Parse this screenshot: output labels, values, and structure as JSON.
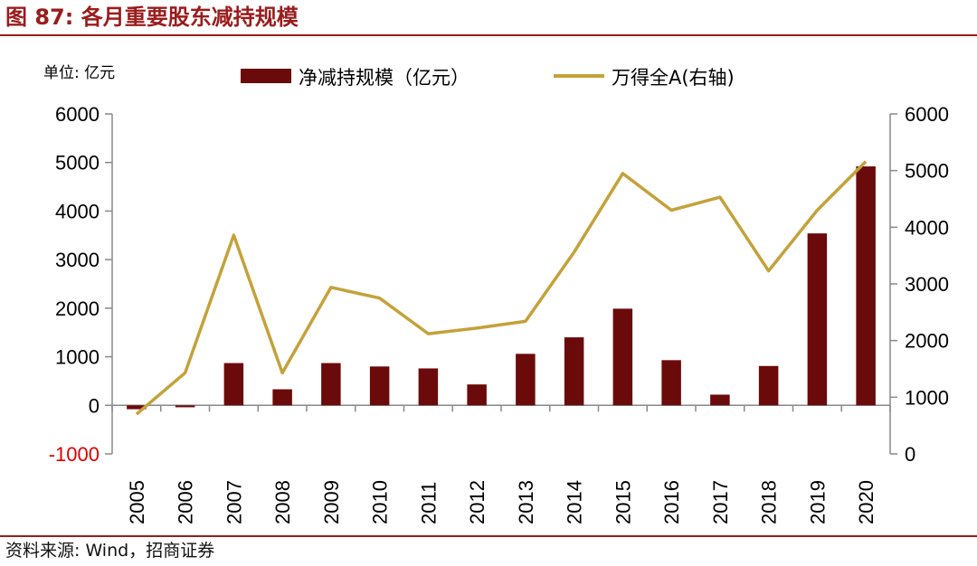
{
  "figure": {
    "title": "图 87:  各月重要股东减持规模",
    "source": "资料来源:  Wind，招商证券",
    "unit_label": "单位:  亿元"
  },
  "colors": {
    "title": "#9b1c1c",
    "bar": "#6b0a0a",
    "line": "#c4a23a",
    "negative_tick": "#e00000",
    "axis": "#888888"
  },
  "chart_data": {
    "type": "bar",
    "categories": [
      "2005",
      "2006",
      "2007",
      "2008",
      "2009",
      "2010",
      "2011",
      "2012",
      "2013",
      "2014",
      "2015",
      "2016",
      "2017",
      "2018",
      "2019",
      "2020"
    ],
    "series": [
      {
        "name": "净减持规模（亿元）",
        "type": "bar",
        "axis": "left",
        "values": [
          -80,
          -40,
          870,
          330,
          870,
          800,
          760,
          430,
          1060,
          1400,
          1990,
          930,
          220,
          810,
          3540,
          4920
        ]
      },
      {
        "name": "万得全A(右轴)",
        "type": "line",
        "axis": "right",
        "values": [
          700,
          1430,
          3860,
          1430,
          2940,
          2750,
          2120,
          2220,
          2340,
          3560,
          4950,
          4300,
          4530,
          3230,
          4300,
          5160
        ]
      }
    ],
    "y_left": {
      "lim": [
        -1000,
        6000
      ],
      "ticks": [
        6000,
        5000,
        4000,
        3000,
        2000,
        1000,
        0,
        -1000
      ]
    },
    "y_right": {
      "lim": [
        0,
        6000
      ],
      "ticks": [
        6000,
        5000,
        4000,
        3000,
        2000,
        1000,
        0
      ]
    },
    "legend_position": "top",
    "grid": false
  }
}
